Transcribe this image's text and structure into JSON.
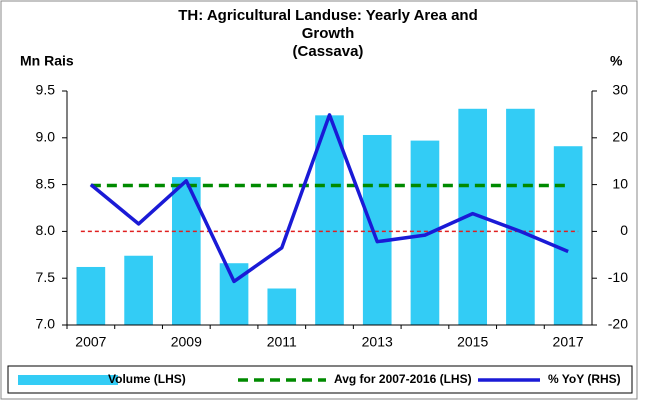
{
  "chart_data": {
    "type": "bar_line",
    "title": [
      "TH: Agricultural Landuse: Yearly Area and",
      "Growth",
      "(Cassava)"
    ],
    "ylabel": "Mn Rais",
    "y2label": "%",
    "categories": [
      "2007",
      null,
      "2009",
      null,
      "2011",
      null,
      "2013",
      null,
      "2015",
      null,
      "2017"
    ],
    "series": [
      {
        "name": "Volume (LHS)",
        "type": "bar",
        "color": "#33ccf5",
        "values": [
          7.62,
          7.74,
          8.58,
          7.66,
          7.39,
          9.24,
          9.03,
          8.97,
          9.31,
          9.31,
          8.91
        ]
      },
      {
        "name": "Avg for 2007-2016 (LHS)",
        "type": "hline",
        "color": "#008a00",
        "dashed": true,
        "value": 8.49
      },
      {
        "name": "% YoY (RHS)",
        "type": "line",
        "axis": "y2",
        "color": "#1a1ad6",
        "values": [
          10,
          1.6,
          10.8,
          -10.7,
          -3.5,
          24.9,
          -2.2,
          -0.8,
          3.8,
          0,
          -4.3
        ]
      }
    ],
    "reference_line": {
      "value": 0,
      "axis": "y2",
      "color": "#e02020",
      "dashed": true
    },
    "ylim": [
      7,
      9.5
    ],
    "yticks": [
      {
        "value": 7,
        "label": "7.0"
      },
      {
        "value": 7.5,
        "label": "7.5"
      },
      {
        "value": 8,
        "label": "8.0"
      },
      {
        "value": 8.5,
        "label": "8.5"
      },
      {
        "value": 9,
        "label": "9.0"
      },
      {
        "value": 9.5,
        "label": "9.5"
      }
    ],
    "y2lim": [
      -20,
      30
    ],
    "y2ticks": [
      -20,
      -10,
      0,
      10,
      20,
      30
    ],
    "legend": "bottom"
  }
}
